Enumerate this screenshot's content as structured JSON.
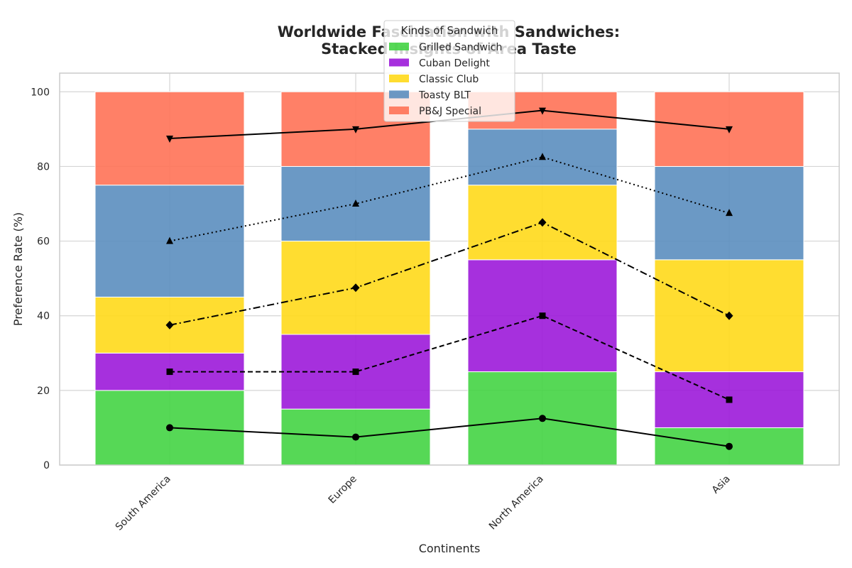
{
  "chart_data": {
    "type": "bar",
    "stacked": true,
    "title_line1": "Worldwide Fascination with Sandwiches:",
    "title_line2": "Stacked Insights of Area Taste",
    "xlabel": "Continents",
    "ylabel": "Preference Rate (%)",
    "ylim": [
      0,
      105
    ],
    "yticks": [
      0,
      20,
      40,
      60,
      80,
      100
    ],
    "grid": true,
    "categories": [
      "South America",
      "Europe",
      "North America",
      "Asia"
    ],
    "legend": {
      "title": "Kinds of Sandwich",
      "placement": "upper-center"
    },
    "series": [
      {
        "name": "Grilled Sandwich",
        "values": [
          20,
          15,
          25,
          10
        ],
        "color": "#44d444"
      },
      {
        "name": "Cuban Delight",
        "values": [
          10,
          20,
          30,
          15
        ],
        "color": "#9c1ad9"
      },
      {
        "name": "Classic Club",
        "values": [
          15,
          25,
          20,
          30
        ],
        "color": "#ffd91a"
      },
      {
        "name": "Toasty BLT",
        "values": [
          30,
          20,
          15,
          25
        ],
        "color": "#5b8ebf"
      },
      {
        "name": "PB&J Special",
        "values": [
          25,
          20,
          10,
          20
        ],
        "color": "#ff7256"
      }
    ],
    "midpoint_lines": [
      {
        "values": [
          10,
          7.5,
          12.5,
          5
        ],
        "dash": "solid",
        "marker": "circle"
      },
      {
        "values": [
          25,
          25,
          40,
          17.5
        ],
        "dash": "dashed",
        "marker": "square"
      },
      {
        "values": [
          37.5,
          47.5,
          65,
          40
        ],
        "dash": "dashdot",
        "marker": "diamond"
      },
      {
        "values": [
          60,
          70,
          82.5,
          67.5
        ],
        "dash": "dotted",
        "marker": "triangle-up"
      },
      {
        "values": [
          87.5,
          90,
          95,
          90
        ],
        "dash": "solid",
        "marker": "triangle-down"
      }
    ]
  }
}
